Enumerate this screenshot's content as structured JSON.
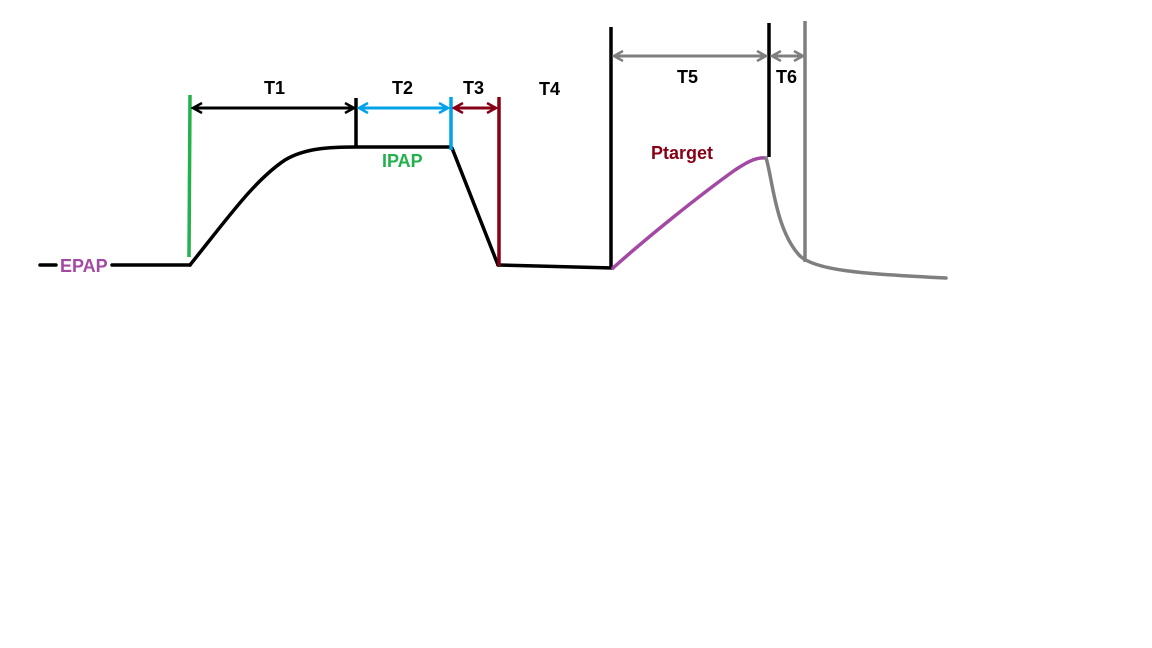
{
  "labels": {
    "t1": "T1",
    "t2": "T2",
    "t3": "T3",
    "t4": "T4",
    "t5": "T5",
    "t6": "T6",
    "ipap": "IPAP",
    "epap": "EPAP",
    "ptarget": "Ptarget"
  },
  "colors": {
    "black": "#000000",
    "green": "#22b14c",
    "blue": "#00a2e8",
    "dark_red": "#880015",
    "purple": "#a349a4",
    "gray": "#7f7f7f"
  }
}
